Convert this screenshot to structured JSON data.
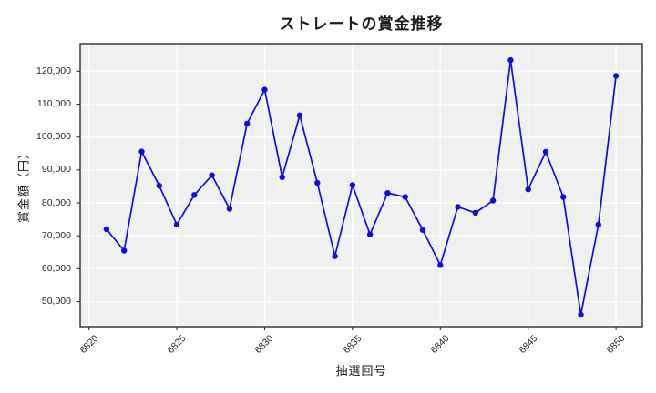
{
  "figure": {
    "background": "#ffffff"
  },
  "chart_data": {
    "type": "line",
    "title": "ストレートの賞金推移",
    "xlabel": "抽選回号",
    "ylabel": "賞金額（円）",
    "x": [
      6821,
      6822,
      6823,
      6824,
      6825,
      6826,
      6827,
      6828,
      6829,
      6830,
      6831,
      6832,
      6833,
      6834,
      6835,
      6836,
      6837,
      6838,
      6839,
      6840,
      6841,
      6842,
      6843,
      6844,
      6845,
      6846,
      6847,
      6848,
      6849,
      6850
    ],
    "y": [
      72000,
      65500,
      95600,
      85200,
      73400,
      82400,
      88400,
      78200,
      104100,
      114400,
      87800,
      106600,
      86100,
      63800,
      85400,
      70400,
      83000,
      81800,
      71800,
      61100,
      78800,
      77000,
      80700,
      123400,
      84100,
      95500,
      81800,
      46000,
      73400,
      118600
    ],
    "xticks": [
      6820,
      6825,
      6830,
      6835,
      6840,
      6845,
      6850
    ],
    "xtick_labels": [
      "6820",
      "6825",
      "6830",
      "6835",
      "6840",
      "6845",
      "6850"
    ],
    "yticks": [
      50000,
      60000,
      70000,
      80000,
      90000,
      100000,
      110000,
      120000
    ],
    "ytick_labels": [
      "50,000",
      "60,000",
      "70,000",
      "80,000",
      "90,000",
      "100,000",
      "110,000",
      "120,000"
    ],
    "xlim": [
      6819.5,
      6851.5
    ],
    "ylim": [
      42400,
      128400
    ],
    "grid": true,
    "legend": false,
    "xtick_rotation": 45,
    "line_color": "#0d0ddc",
    "marker": "circle",
    "marker_radius": 3.2,
    "plot_bg": "#f0f0f0",
    "grid_color": "#ffffff",
    "spine_color": "#2e2e2e",
    "tick_color": "#2e2e2e"
  }
}
